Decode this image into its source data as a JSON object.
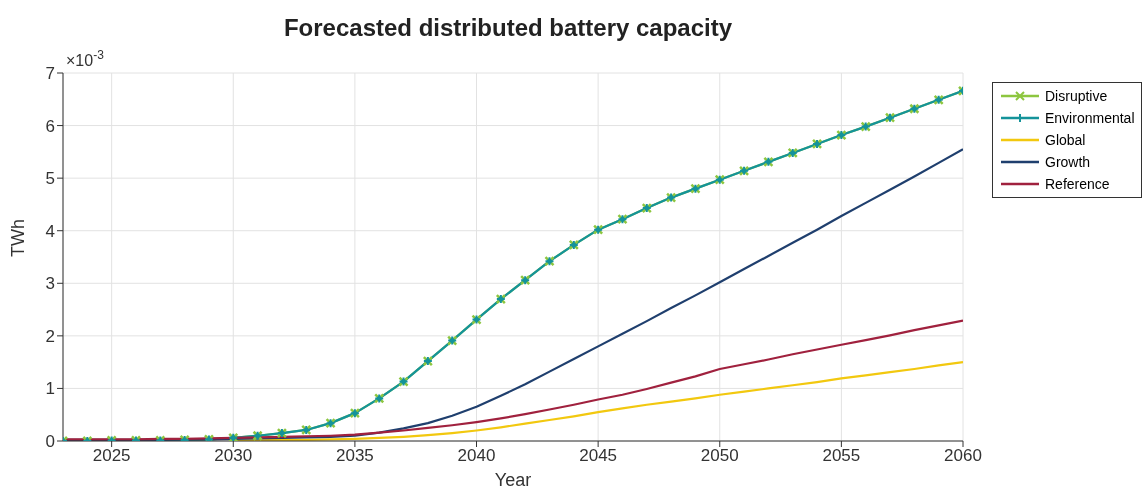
{
  "chart_data": {
    "type": "line",
    "title": "Forecasted distributed battery capacity",
    "xlabel": "Year",
    "ylabel": "TWh",
    "annotations": [
      "×10$^{-3}$"
    ],
    "x": [
      2023,
      2024,
      2025,
      2026,
      2027,
      2028,
      2029,
      2030,
      2031,
      2032,
      2033,
      2034,
      2035,
      2036,
      2037,
      2038,
      2039,
      2040,
      2041,
      2042,
      2043,
      2044,
      2045,
      2046,
      2047,
      2048,
      2049,
      2050,
      2051,
      2052,
      2053,
      2054,
      2055,
      2056,
      2057,
      2058,
      2059,
      2060
    ],
    "series": [
      {
        "name": "Disruptive",
        "color": "#8dc63f",
        "marker": "cross",
        "values": [
          0.0,
          0.0,
          0.01,
          0.01,
          0.01,
          0.02,
          0.03,
          0.06,
          0.1,
          0.15,
          0.21,
          0.34,
          0.53,
          0.81,
          1.13,
          1.52,
          1.91,
          2.31,
          2.7,
          3.06,
          3.42,
          3.73,
          4.02,
          4.22,
          4.43,
          4.63,
          4.8,
          4.97,
          5.14,
          5.31,
          5.48,
          5.65,
          5.82,
          5.98,
          6.15,
          6.32,
          6.49,
          6.66
        ]
      },
      {
        "name": "Environmental",
        "color": "#14939a",
        "marker": "cross",
        "values": [
          0.0,
          0.0,
          0.01,
          0.01,
          0.01,
          0.02,
          0.03,
          0.06,
          0.1,
          0.15,
          0.21,
          0.34,
          0.53,
          0.81,
          1.13,
          1.52,
          1.91,
          2.31,
          2.7,
          3.06,
          3.42,
          3.73,
          4.02,
          4.22,
          4.43,
          4.63,
          4.8,
          4.97,
          5.14,
          5.31,
          5.48,
          5.65,
          5.82,
          5.98,
          6.15,
          6.32,
          6.49,
          6.66
        ]
      },
      {
        "name": "Global",
        "color": "#f2c80f",
        "values": [
          null,
          null,
          null,
          null,
          null,
          null,
          null,
          0.01,
          0.01,
          0.02,
          0.02,
          0.03,
          0.04,
          0.06,
          0.08,
          0.11,
          0.15,
          0.2,
          0.26,
          0.33,
          0.4,
          0.47,
          0.55,
          0.62,
          0.69,
          0.75,
          0.81,
          0.88,
          0.94,
          1.0,
          1.06,
          1.12,
          1.19,
          1.25,
          1.31,
          1.37,
          1.44,
          1.5
        ]
      },
      {
        "name": "Growth",
        "color": "#1f3f6e",
        "values": [
          0.02,
          0.02,
          0.02,
          0.02,
          0.02,
          0.03,
          0.03,
          0.04,
          0.05,
          0.06,
          0.07,
          0.08,
          0.1,
          0.16,
          0.24,
          0.34,
          0.48,
          0.65,
          0.86,
          1.08,
          1.32,
          1.56,
          1.8,
          2.04,
          2.28,
          2.53,
          2.77,
          3.02,
          3.27,
          3.52,
          3.77,
          4.02,
          4.28,
          4.53,
          4.78,
          5.03,
          5.29,
          5.55
        ]
      },
      {
        "name": "Reference",
        "color": "#a0213e",
        "values": [
          0.03,
          0.03,
          0.03,
          0.03,
          0.04,
          0.04,
          0.05,
          0.06,
          0.07,
          0.08,
          0.09,
          0.1,
          0.12,
          0.16,
          0.2,
          0.25,
          0.3,
          0.36,
          0.43,
          0.51,
          0.6,
          0.69,
          0.79,
          0.88,
          0.99,
          1.11,
          1.23,
          1.37,
          1.46,
          1.55,
          1.65,
          1.74,
          1.83,
          1.92,
          2.01,
          2.11,
          2.2,
          2.29
        ]
      }
    ],
    "xlim": [
      2023,
      2060
    ],
    "xticks": [
      2025,
      2030,
      2035,
      2040,
      2045,
      2050,
      2055,
      2060
    ],
    "ylim": [
      0,
      7
    ],
    "yticks": [
      0,
      1,
      2,
      3,
      4,
      5,
      6,
      7
    ],
    "grid": true,
    "legend": "top right"
  }
}
